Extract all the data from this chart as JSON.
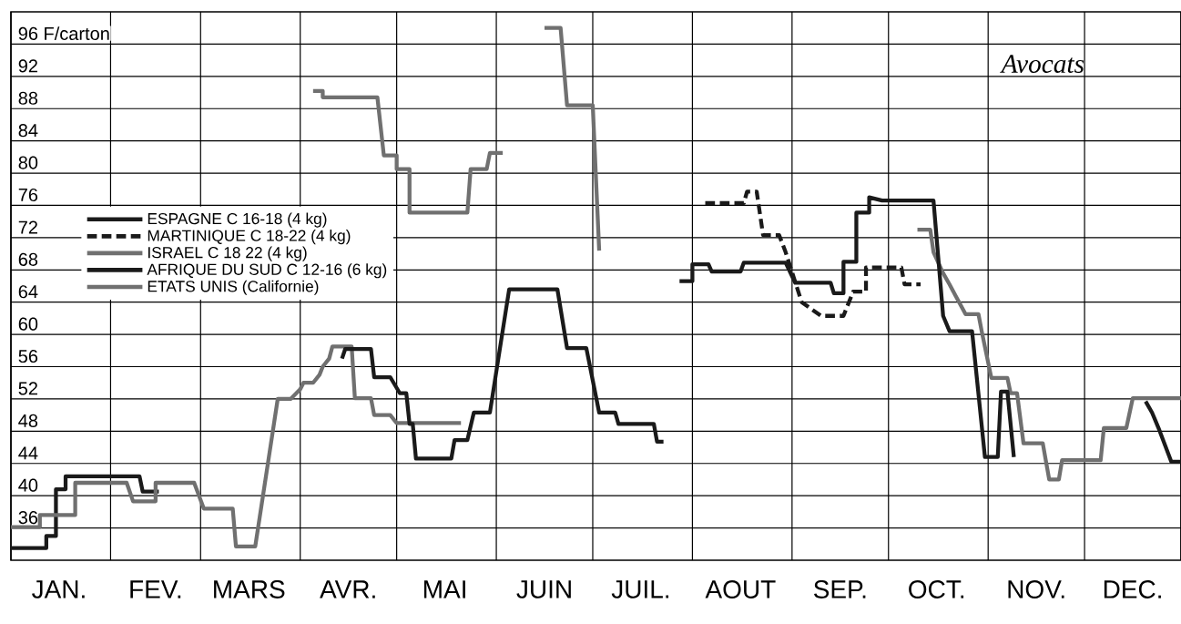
{
  "chart_data": {
    "type": "line",
    "title": "Avocats",
    "xlim": [
      "--01-01",
      "--12-31"
    ],
    "ylim": [
      32,
      100
    ],
    "xticks": [
      {
        "value": "--01-01",
        "label": null
      },
      {
        "value": "--01-16",
        "label": "JAN."
      },
      {
        "value": "--02-01",
        "label": null
      },
      {
        "value": "--02-15",
        "label": "FEV."
      },
      {
        "value": "--03-01",
        "label": null
      },
      {
        "value": "--03-16",
        "label": "MARS"
      },
      {
        "value": "--04-01",
        "label": null
      },
      {
        "value": "--04-16",
        "label": "AVR."
      },
      {
        "value": "--05-01",
        "label": null
      },
      {
        "value": "--05-16",
        "label": "MAI"
      },
      {
        "value": "--06-01",
        "label": null
      },
      {
        "value": "--06-16",
        "label": "JUIN"
      },
      {
        "value": "--07-01",
        "label": null
      },
      {
        "value": "--07-16",
        "label": "JUIL."
      },
      {
        "value": "--08-01",
        "label": null
      },
      {
        "value": "--08-16",
        "label": "AOUT"
      },
      {
        "value": "--09-01",
        "label": null
      },
      {
        "value": "--09-16",
        "label": "SEP."
      },
      {
        "value": "--10-01",
        "label": null
      },
      {
        "value": "--10-16",
        "label": "OCT."
      },
      {
        "value": "--11-01",
        "label": null
      },
      {
        "value": "--11-16",
        "label": "NOV."
      },
      {
        "value": "--12-01",
        "label": null
      },
      {
        "value": "--12-16",
        "label": "DEC."
      },
      {
        "value": "--12-31",
        "label": null
      }
    ],
    "yticks": [
      36,
      40,
      44,
      48,
      52,
      56,
      60,
      64,
      68,
      72,
      76,
      80,
      84,
      88,
      92,
      {
        "value": 96,
        "label": "96 F/carton"
      }
    ],
    "grid": true,
    "legend": "left",
    "marker": "none",
    "series": [
      {
        "name": "ESPAGNE C 16-18 (4 kg)",
        "color": "#1a1a1a",
        "line_style": "solid",
        "x": [
          "--01-01",
          "--01-12",
          "--01-12",
          "--01-15",
          "--01-15",
          "--01-18",
          "--01-18",
          "--02-10",
          "--02-11",
          "--02-16",
          "--07-01",
          "--12-20",
          "--12-22",
          "--12-24",
          "--12-28",
          "--12-31"
        ],
        "values": [
          33.5,
          33.5,
          35,
          35,
          40.8,
          40.8,
          42.4,
          42.4,
          40.5,
          40.5,
          null,
          51.7,
          50.3,
          48.4,
          44.2,
          44.2
        ]
      },
      {
        "name": "MARTINIQUE C 18-22 (4 kg)",
        "color": "#1a1a1a",
        "line_style": "dashed",
        "x": [
          "--08-05",
          "--08-17",
          "--08-18",
          "--08-21",
          "--08-23",
          "--08-28",
          "--08-30",
          "--09-04",
          "--09-10",
          "--09-17",
          "--09-20",
          "--09-24",
          "--09-24",
          "--10-05",
          "--10-06",
          "--10-11"
        ],
        "values": [
          76.3,
          76.3,
          77.7,
          77.7,
          72.3,
          72.3,
          70.2,
          64,
          62.3,
          62.3,
          65.3,
          65.3,
          68.3,
          68.3,
          66.2,
          66.2
        ]
      },
      {
        "name": "ISRAEL C 18 22 (4 kg)",
        "color": "#707070",
        "line_style": "solid",
        "x": [
          "--01-01",
          "--01-10",
          "--01-10",
          "--01-21",
          "--01-21",
          "--02-06",
          "--02-08",
          "--02-15",
          "--02-15",
          "--02-27",
          "--03-02",
          "--03-11",
          "--03-12",
          "--03-18",
          "--03-25",
          "--03-29",
          "--04-01",
          "--04-02",
          "--04-05",
          "--04-07",
          "--04-08",
          "--04-10",
          "--04-11",
          "--04-17",
          "--04-18",
          "--04-23",
          "--04-24",
          "--04-29",
          "--05-01",
          "--05-21",
          "--08-01",
          "--10-10",
          "--10-14",
          "--10-15",
          "--10-18",
          "--10-20",
          "--10-22",
          "--10-25",
          "--10-29",
          "--10-30",
          "--11-02",
          "--11-07",
          "--11-08",
          "--11-10",
          "--11-12",
          "--11-18",
          "--11-20",
          "--11-23",
          "--11-24",
          "--12-06",
          "--12-07",
          "--12-14",
          "--12-16",
          "--12-31"
        ],
        "values": [
          36.1,
          36.1,
          37.6,
          37.6,
          41.6,
          41.6,
          39.3,
          39.3,
          41.6,
          41.6,
          38.4,
          38.4,
          33.7,
          33.7,
          52,
          52,
          53.2,
          54,
          54,
          55,
          56,
          57,
          58.5,
          58.5,
          52.1,
          52.1,
          50,
          50,
          49,
          49,
          null,
          73,
          73,
          70.2,
          67.6,
          66.2,
          64.7,
          62.5,
          62.5,
          60.4,
          54.6,
          54.6,
          52.7,
          52.7,
          46.5,
          46.5,
          42,
          42,
          44.4,
          44.4,
          48.4,
          48.4,
          52.1,
          52.1
        ]
      },
      {
        "name": "AFRIQUE DU SUD C 12-16 (6 kg)",
        "color": "#1a1a1a",
        "line_style": "solid",
        "x": [
          "--04-14",
          "--04-15",
          "--04-23",
          "--04-24",
          "--04-29",
          "--05-02",
          "--05-04",
          "--05-05",
          "--05-06",
          "--05-07",
          "--05-18",
          "--05-19",
          "--05-23",
          "--05-25",
          "--05-30",
          "--06-05",
          "--06-20",
          "--06-23",
          "--06-29",
          "--07-03",
          "--07-08",
          "--07-09",
          "--07-20",
          "--07-21",
          "--07-23",
          "--07-25",
          "--07-28",
          "--08-01",
          "--08-01",
          "--08-06",
          "--08-07",
          "--08-16",
          "--08-17",
          "--08-30",
          "--09-02",
          "--09-13",
          "--09-14",
          "--09-17",
          "--09-17",
          "--09-21",
          "--09-21",
          "--09-25",
          "--09-25",
          "--09-29",
          "--10-15",
          "--10-18",
          "--10-20",
          "--10-27",
          "--10-31",
          "--11-04",
          "--11-05",
          "--11-07",
          "--11-09"
        ],
        "values": [
          57,
          58.2,
          58.2,
          54.7,
          54.7,
          52.7,
          52.7,
          48.9,
          48.9,
          44.6,
          44.6,
          46.9,
          46.9,
          50.3,
          50.3,
          65.6,
          65.6,
          58.3,
          58.3,
          50.3,
          50.3,
          48.9,
          48.9,
          46.7,
          46.7,
          null,
          66.6,
          66.6,
          68.7,
          68.7,
          67.8,
          67.8,
          68.9,
          68.9,
          66.4,
          66.4,
          65.1,
          65.1,
          69,
          69,
          75.1,
          75.1,
          77,
          76.6,
          76.6,
          62.3,
          60.4,
          60.4,
          44.8,
          44.8,
          52.9,
          52.9,
          44.8
        ]
      },
      {
        "name": "ETATS UNIS (Californie)",
        "color": "#707070",
        "line_style": "solid",
        "x": [
          "--04-05",
          "--04-08",
          "--04-08",
          "--04-25",
          "--04-27",
          "--05-01",
          "--05-01",
          "--05-05",
          "--05-05",
          "--05-23",
          "--05-24",
          "--05-29",
          "--05-30",
          "--06-03",
          "--06-10",
          "--06-16",
          "--06-21",
          "--06-23",
          "--07-01",
          "--07-03"
        ],
        "values": [
          90.2,
          90.2,
          89.4,
          89.4,
          82.2,
          82.2,
          80.5,
          80.5,
          75.1,
          75.1,
          80.5,
          80.5,
          82.5,
          82.5,
          null,
          98,
          98,
          88.4,
          88.4,
          70.4
        ]
      }
    ]
  }
}
